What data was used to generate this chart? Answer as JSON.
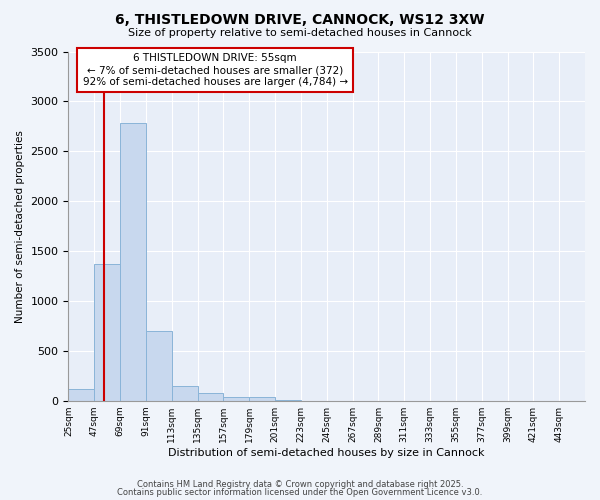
{
  "title": "6, THISTLEDOWN DRIVE, CANNOCK, WS12 3XW",
  "subtitle": "Size of property relative to semi-detached houses in Cannock",
  "xlabel": "Distribution of semi-detached houses by size in Cannock",
  "ylabel": "Number of semi-detached properties",
  "bar_edges": [
    25,
    47,
    69,
    91,
    113,
    135,
    157,
    179,
    201,
    223,
    245,
    267,
    289,
    311,
    333,
    355,
    377,
    399,
    421,
    443,
    465
  ],
  "bar_heights": [
    120,
    1370,
    2780,
    700,
    150,
    80,
    40,
    40,
    5,
    2,
    1,
    1,
    1,
    0,
    0,
    0,
    0,
    0,
    0,
    0
  ],
  "bar_color": "#c8d8ee",
  "bar_edge_color": "#8ab4d8",
  "property_line_x": 55,
  "property_line_color": "#cc0000",
  "annotation_title": "6 THISTLEDOWN DRIVE: 55sqm",
  "annotation_line1": "← 7% of semi-detached houses are smaller (372)",
  "annotation_line2": "92% of semi-detached houses are larger (4,784) →",
  "annotation_box_color": "#cc0000",
  "annotation_bg": "#ffffff",
  "ylim": [
    0,
    3500
  ],
  "yticks": [
    0,
    500,
    1000,
    1500,
    2000,
    2500,
    3000,
    3500
  ],
  "bg_color": "#f0f4fa",
  "plot_bg_color": "#e8eef8",
  "grid_color": "#ffffff",
  "footer_line1": "Contains HM Land Registry data © Crown copyright and database right 2025.",
  "footer_line2": "Contains public sector information licensed under the Open Government Licence v3.0."
}
